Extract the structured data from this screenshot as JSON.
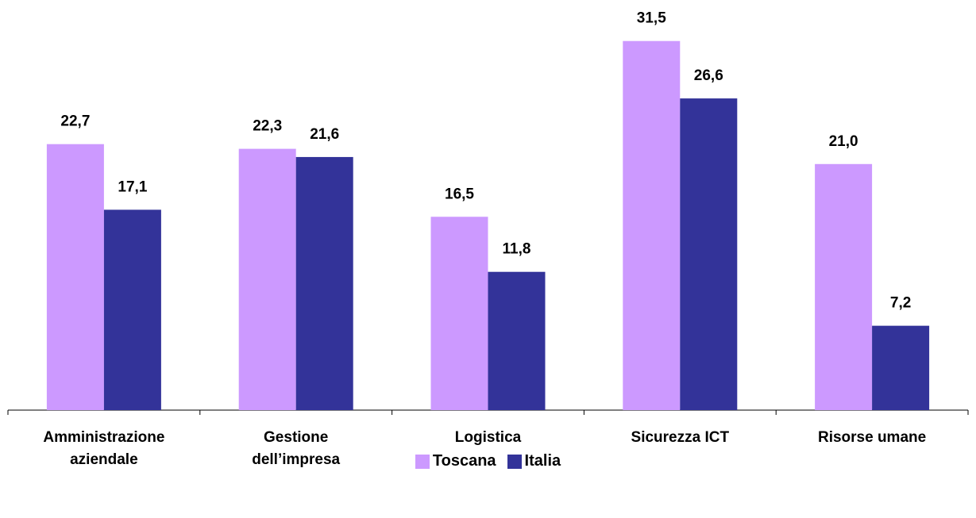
{
  "chart_data": {
    "type": "bar",
    "categories": [
      "Amministrazione aziendale",
      "Gestione dell’impresa",
      "Logistica",
      "Sicurezza ICT",
      "Risorse umane"
    ],
    "series": [
      {
        "name": "Toscana",
        "color": "#cc99ff",
        "values": [
          22.7,
          22.3,
          16.5,
          31.5,
          21.0
        ],
        "value_labels": [
          "22,7",
          "22,3",
          "16,5",
          "31,5",
          "21,0"
        ]
      },
      {
        "name": "Italia",
        "color": "#333399",
        "values": [
          17.1,
          21.6,
          11.8,
          26.6,
          7.2
        ],
        "value_labels": [
          "17,1",
          "21,6",
          "11,8",
          "26,6",
          "7,2"
        ]
      }
    ],
    "ylim": [
      0,
      35
    ],
    "legend": "bottom"
  }
}
